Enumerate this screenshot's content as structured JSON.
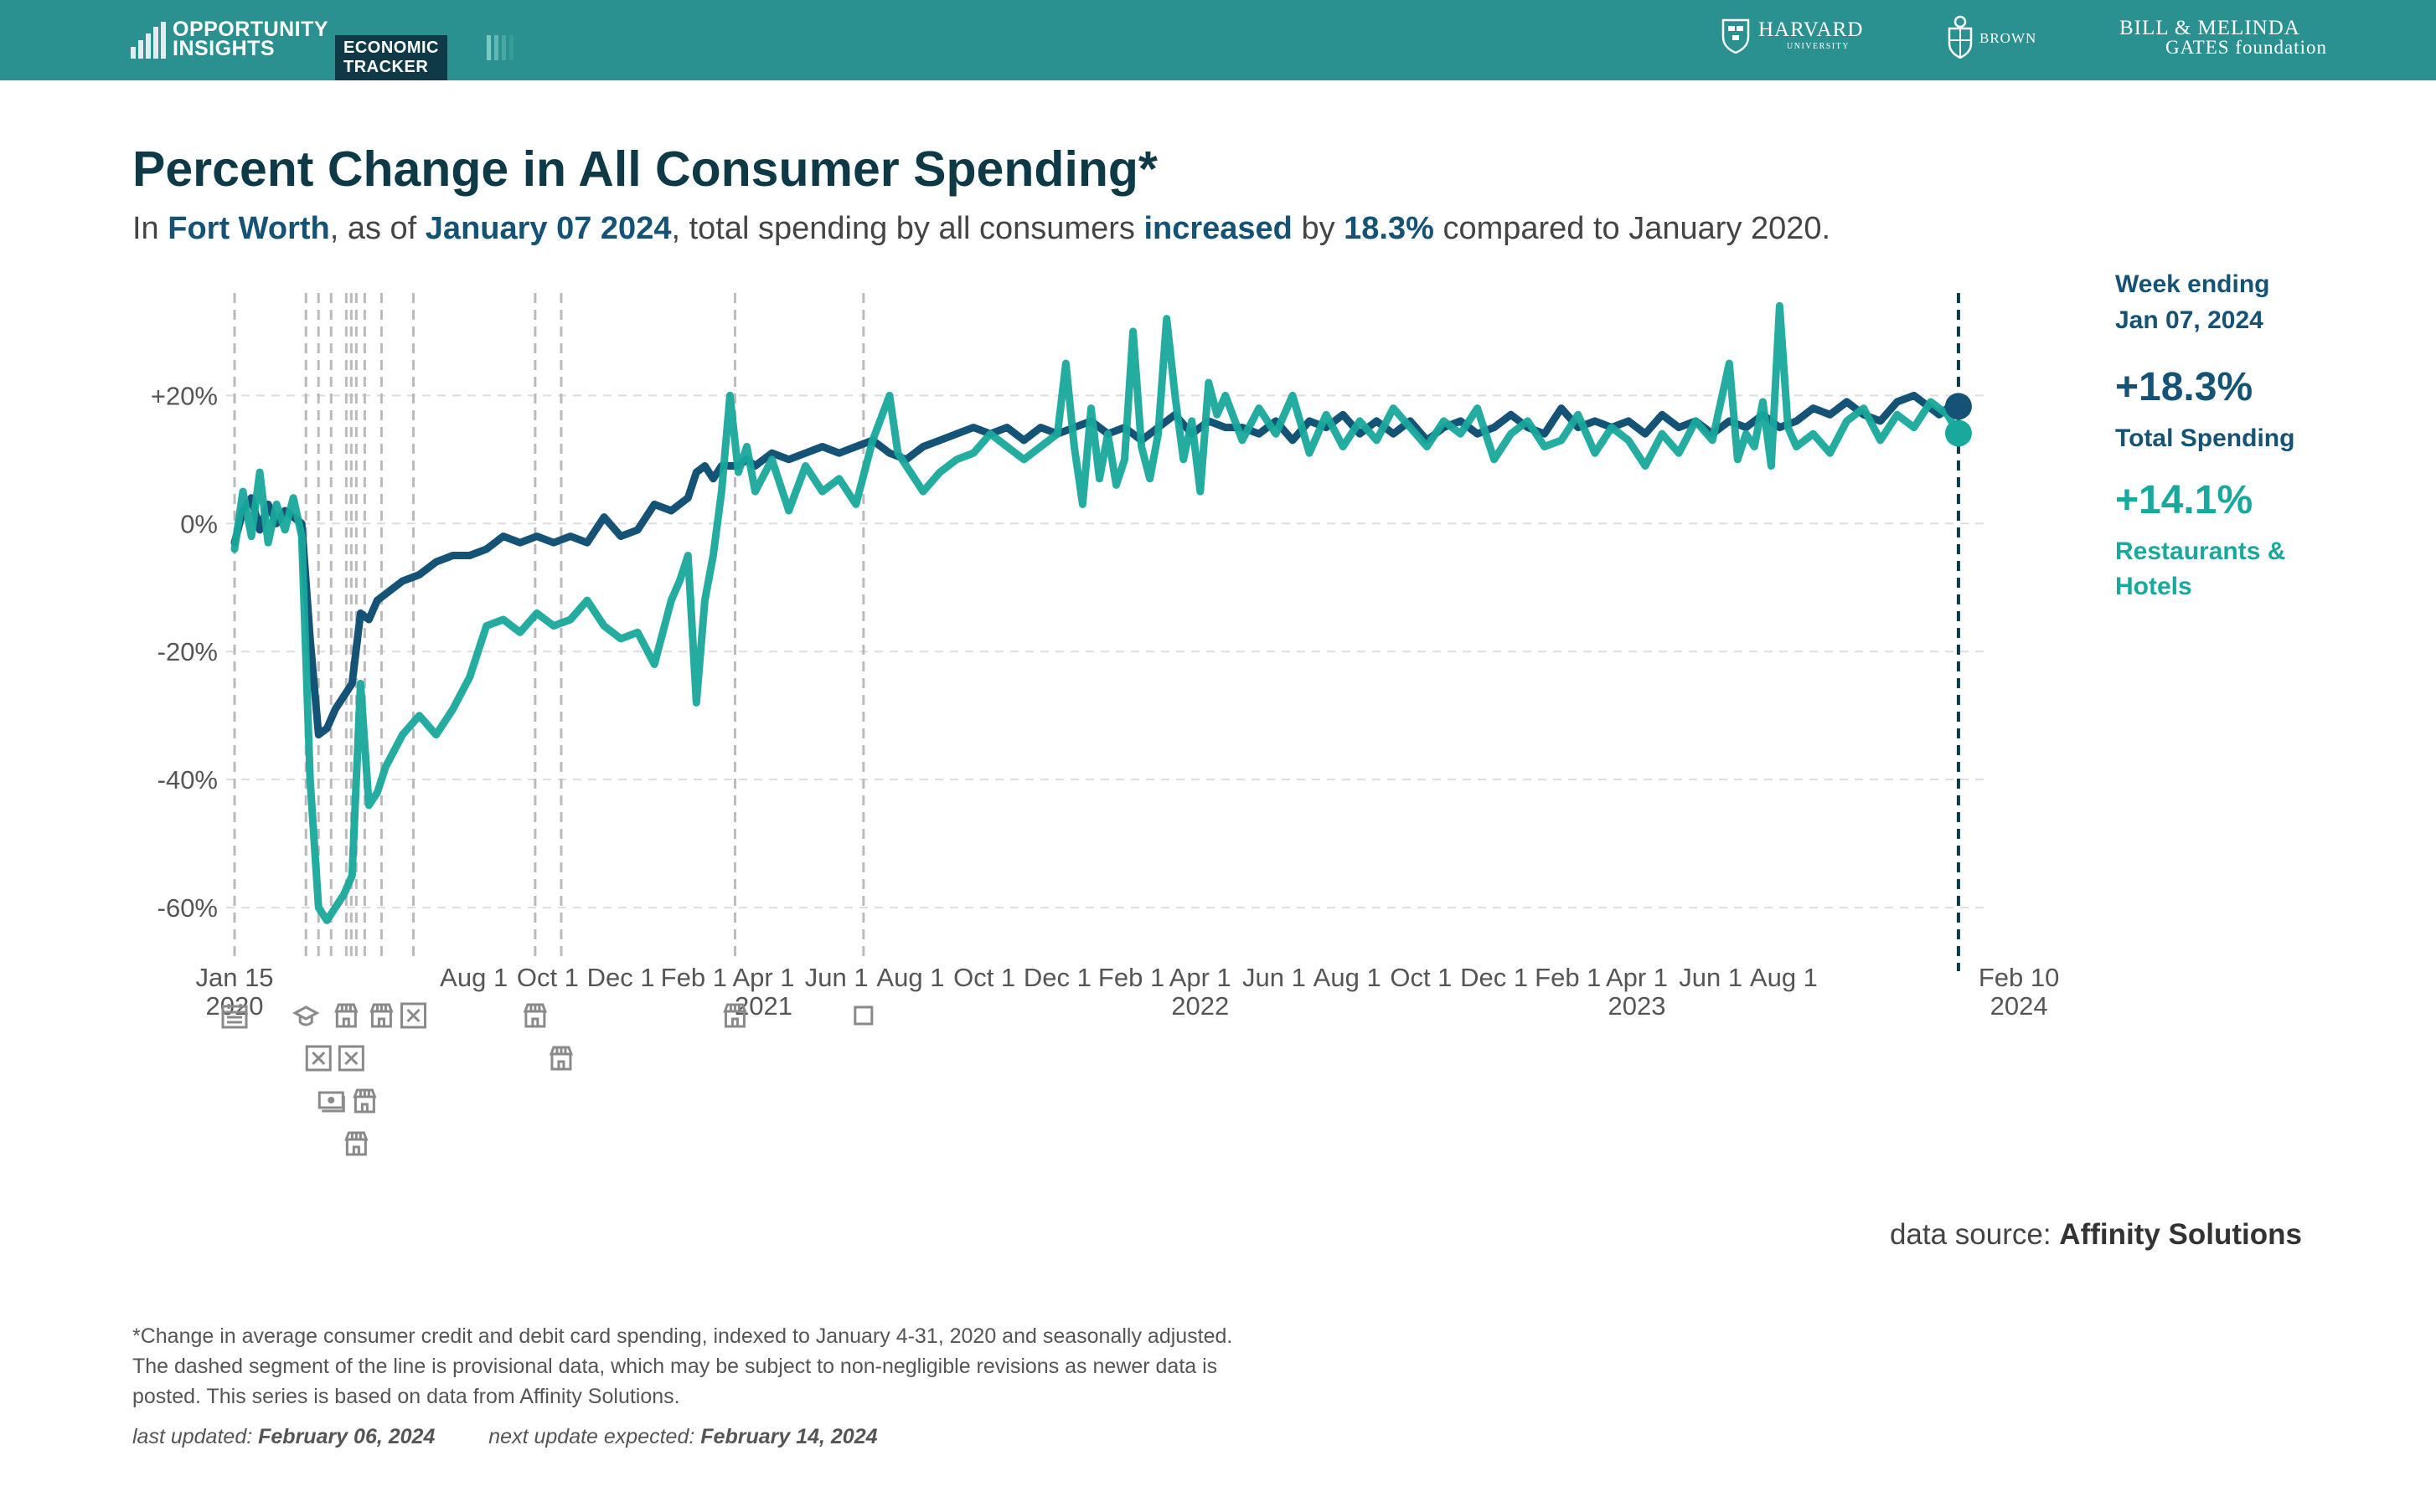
{
  "header": {
    "brand_line1": "OPPORTUNITY",
    "brand_line2": "INSIGHTS",
    "tracker_label": "ECONOMIC TRACKER",
    "partners": {
      "harvard": "HARVARD",
      "harvard_sub": "UNIVERSITY",
      "brown": "BROWN",
      "gates_line1": "BILL & MELINDA",
      "gates_line2": "GATES foundation"
    },
    "background_color": "#2a9090"
  },
  "title": "Percent Change in All Consumer Spending*",
  "subtitle": {
    "p1": "In ",
    "location": "Fort Worth",
    "p2": ", as of ",
    "date": "January 07 2024",
    "p3": ", total spending by all consumers ",
    "direction": "increased",
    "p4": " by ",
    "value": "18.3%",
    "p5": " compared to January 2020."
  },
  "side_panel": {
    "week_line1": "Week ending",
    "week_line2": "Jan 07, 2024",
    "total_value": "+18.3%",
    "total_label": "Total Spending",
    "rest_value": "+14.1%",
    "rest_label_line1": "Restaurants &",
    "rest_label_line2": "Hotels"
  },
  "source_prefix": "data source: ",
  "source_name": "Affinity Solutions",
  "footnote_lines": [
    "*Change in average consumer credit and debit card spending, indexed to January 4-31, 2020 and seasonally adjusted.",
    "The dashed segment of the line is provisional data, which may be subject to non-negligible revisions as newer data is",
    "posted. This series is based on data from Affinity Solutions."
  ],
  "last_updated_label": "last updated:",
  "last_updated": "February 06, 2024",
  "next_update_label": "next update expected:",
  "next_update": "February 14, 2024",
  "colors": {
    "total": "#145375",
    "restaurants": "#18a89c",
    "title": "#0d3a46",
    "event_line": "#bbbbbb",
    "grid": "#dddddd"
  },
  "chart_data": {
    "type": "line",
    "x_unit": "weeks since Jan 15 2020",
    "xlim": [
      -0.5,
      208.5
    ],
    "ylim": [
      -66,
      36
    ],
    "y_ticks": [
      -60,
      -40,
      -20,
      0,
      20
    ],
    "y_tick_labels": [
      "-60%",
      "-40%",
      "-20%",
      "0%",
      "+20%"
    ],
    "x_tick_labels": [
      {
        "x": 0,
        "l1": "Jan 15",
        "l2": "2020"
      },
      {
        "x": 28.5,
        "l1": "Aug 1",
        "l2": ""
      },
      {
        "x": 37.3,
        "l1": "Oct 1",
        "l2": ""
      },
      {
        "x": 46,
        "l1": "Dec 1",
        "l2": ""
      },
      {
        "x": 54.7,
        "l1": "Feb 1",
        "l2": ""
      },
      {
        "x": 63,
        "l1": "Apr 1",
        "l2": "2021"
      },
      {
        "x": 71.7,
        "l1": "Jun 1",
        "l2": ""
      },
      {
        "x": 80.5,
        "l1": "Aug 1",
        "l2": ""
      },
      {
        "x": 89.3,
        "l1": "Oct 1",
        "l2": ""
      },
      {
        "x": 98,
        "l1": "Dec 1",
        "l2": ""
      },
      {
        "x": 106.8,
        "l1": "Feb 1",
        "l2": ""
      },
      {
        "x": 115,
        "l1": "Apr 1",
        "l2": "2022"
      },
      {
        "x": 123.8,
        "l1": "Jun 1",
        "l2": ""
      },
      {
        "x": 132.5,
        "l1": "Aug 1",
        "l2": ""
      },
      {
        "x": 141.3,
        "l1": "Oct 1",
        "l2": ""
      },
      {
        "x": 150,
        "l1": "Dec 1",
        "l2": ""
      },
      {
        "x": 158.8,
        "l1": "Feb 1",
        "l2": ""
      },
      {
        "x": 167,
        "l1": "Apr 1",
        "l2": "2023"
      },
      {
        "x": 175.8,
        "l1": "Jun 1",
        "l2": ""
      },
      {
        "x": 184.5,
        "l1": "Aug 1",
        "l2": ""
      },
      {
        "x": 212.5,
        "l1": "Feb 10",
        "l2": "2024"
      }
    ],
    "event_lines": [
      {
        "x": 0,
        "icon": "calendar"
      },
      {
        "x": 8.5,
        "icon": "graduation-cap"
      },
      {
        "x": 10,
        "icon": "box-x"
      },
      {
        "x": 11.5,
        "icon": "cash"
      },
      {
        "x": 13.3,
        "icon": "store"
      },
      {
        "x": 13.9,
        "icon": "box-x"
      },
      {
        "x": 14.5,
        "icon": "store"
      },
      {
        "x": 15.5,
        "icon": "store"
      },
      {
        "x": 17.5,
        "icon": "store"
      },
      {
        "x": 21.3,
        "icon": "box-x"
      },
      {
        "x": 35.8,
        "icon": "store"
      },
      {
        "x": 38.9,
        "icon": "store"
      },
      {
        "x": 59.6,
        "icon": "store"
      },
      {
        "x": 74.9,
        "icon": "square"
      }
    ],
    "current_week_x": 205.3,
    "series": [
      {
        "name": "Total Spending",
        "color": "#145375",
        "last_value": 18.3,
        "points": [
          [
            0,
            -3
          ],
          [
            1,
            2
          ],
          [
            2,
            4
          ],
          [
            3,
            -1
          ],
          [
            4,
            3
          ],
          [
            5,
            0
          ],
          [
            6,
            2
          ],
          [
            7,
            1
          ],
          [
            8,
            0
          ],
          [
            9,
            -18
          ],
          [
            10,
            -33
          ],
          [
            11,
            -32
          ],
          [
            12,
            -29
          ],
          [
            13,
            -27
          ],
          [
            14,
            -25
          ],
          [
            15,
            -14
          ],
          [
            16,
            -15
          ],
          [
            17,
            -12
          ],
          [
            18,
            -11
          ],
          [
            20,
            -9
          ],
          [
            22,
            -8
          ],
          [
            24,
            -6
          ],
          [
            26,
            -5
          ],
          [
            28,
            -5
          ],
          [
            30,
            -4
          ],
          [
            32,
            -2
          ],
          [
            34,
            -3
          ],
          [
            36,
            -2
          ],
          [
            38,
            -3
          ],
          [
            40,
            -2
          ],
          [
            42,
            -3
          ],
          [
            44,
            1
          ],
          [
            46,
            -2
          ],
          [
            48,
            -1
          ],
          [
            50,
            3
          ],
          [
            52,
            2
          ],
          [
            54,
            4
          ],
          [
            55,
            8
          ],
          [
            56,
            9
          ],
          [
            57,
            7
          ],
          [
            58,
            9
          ],
          [
            60,
            9
          ],
          [
            61,
            10
          ],
          [
            62,
            9
          ],
          [
            64,
            11
          ],
          [
            66,
            10
          ],
          [
            68,
            11
          ],
          [
            70,
            12
          ],
          [
            72,
            11
          ],
          [
            74,
            12
          ],
          [
            76,
            13
          ],
          [
            78,
            11
          ],
          [
            80,
            10
          ],
          [
            82,
            12
          ],
          [
            84,
            13
          ],
          [
            86,
            14
          ],
          [
            88,
            15
          ],
          [
            90,
            14
          ],
          [
            92,
            15
          ],
          [
            94,
            13
          ],
          [
            96,
            15
          ],
          [
            98,
            14
          ],
          [
            100,
            15
          ],
          [
            102,
            16
          ],
          [
            104,
            14
          ],
          [
            106,
            15
          ],
          [
            108,
            13
          ],
          [
            110,
            15
          ],
          [
            112,
            17
          ],
          [
            114,
            14
          ],
          [
            116,
            16
          ],
          [
            118,
            15
          ],
          [
            120,
            15
          ],
          [
            122,
            14
          ],
          [
            124,
            16
          ],
          [
            126,
            13
          ],
          [
            128,
            16
          ],
          [
            130,
            15
          ],
          [
            132,
            17
          ],
          [
            134,
            14
          ],
          [
            136,
            16
          ],
          [
            138,
            14
          ],
          [
            140,
            16
          ],
          [
            142,
            13
          ],
          [
            144,
            15
          ],
          [
            146,
            16
          ],
          [
            148,
            14
          ],
          [
            150,
            15
          ],
          [
            152,
            17
          ],
          [
            154,
            15
          ],
          [
            156,
            14
          ],
          [
            158,
            18
          ],
          [
            160,
            15
          ],
          [
            162,
            16
          ],
          [
            164,
            15
          ],
          [
            166,
            16
          ],
          [
            168,
            14
          ],
          [
            170,
            17
          ],
          [
            172,
            15
          ],
          [
            174,
            16
          ],
          [
            176,
            14
          ],
          [
            178,
            16
          ],
          [
            180,
            15
          ],
          [
            182,
            17
          ],
          [
            184,
            15
          ],
          [
            186,
            16
          ],
          [
            188,
            18
          ],
          [
            190,
            17
          ],
          [
            192,
            19
          ],
          [
            194,
            17
          ],
          [
            196,
            16
          ],
          [
            198,
            19
          ],
          [
            200,
            20
          ],
          [
            202,
            18
          ],
          [
            203,
            17
          ],
          [
            204,
            18
          ],
          [
            205.3,
            18.3
          ]
        ]
      },
      {
        "name": "Restaurants & Hotels",
        "color": "#18a89c",
        "last_value": 14.1,
        "points": [
          [
            0,
            -4
          ],
          [
            1,
            5
          ],
          [
            2,
            -2
          ],
          [
            3,
            8
          ],
          [
            4,
            -3
          ],
          [
            5,
            3
          ],
          [
            6,
            -1
          ],
          [
            7,
            4
          ],
          [
            8,
            -2
          ],
          [
            9,
            -40
          ],
          [
            10,
            -60
          ],
          [
            11,
            -62
          ],
          [
            12,
            -60
          ],
          [
            13,
            -58
          ],
          [
            14,
            -55
          ],
          [
            15,
            -25
          ],
          [
            16,
            -44
          ],
          [
            17,
            -42
          ],
          [
            18,
            -38
          ],
          [
            20,
            -33
          ],
          [
            22,
            -30
          ],
          [
            24,
            -33
          ],
          [
            26,
            -29
          ],
          [
            28,
            -24
          ],
          [
            30,
            -16
          ],
          [
            32,
            -15
          ],
          [
            34,
            -17
          ],
          [
            36,
            -14
          ],
          [
            38,
            -16
          ],
          [
            40,
            -15
          ],
          [
            42,
            -12
          ],
          [
            44,
            -16
          ],
          [
            46,
            -18
          ],
          [
            48,
            -17
          ],
          [
            50,
            -22
          ],
          [
            52,
            -12
          ],
          [
            53,
            -9
          ],
          [
            54,
            -5
          ],
          [
            55,
            -28
          ],
          [
            56,
            -12
          ],
          [
            57,
            -5
          ],
          [
            58,
            5
          ],
          [
            59,
            20
          ],
          [
            60,
            8
          ],
          [
            61,
            12
          ],
          [
            62,
            5
          ],
          [
            64,
            10
          ],
          [
            66,
            2
          ],
          [
            68,
            9
          ],
          [
            70,
            5
          ],
          [
            72,
            7
          ],
          [
            74,
            3
          ],
          [
            76,
            13
          ],
          [
            78,
            20
          ],
          [
            79,
            11
          ],
          [
            80,
            9
          ],
          [
            82,
            5
          ],
          [
            84,
            8
          ],
          [
            86,
            10
          ],
          [
            88,
            11
          ],
          [
            90,
            14
          ],
          [
            92,
            12
          ],
          [
            94,
            10
          ],
          [
            96,
            12
          ],
          [
            98,
            14
          ],
          [
            99,
            25
          ],
          [
            100,
            12
          ],
          [
            101,
            3
          ],
          [
            102,
            18
          ],
          [
            103,
            7
          ],
          [
            104,
            14
          ],
          [
            105,
            6
          ],
          [
            106,
            10
          ],
          [
            107,
            30
          ],
          [
            108,
            12
          ],
          [
            109,
            7
          ],
          [
            110,
            14
          ],
          [
            111,
            32
          ],
          [
            112,
            20
          ],
          [
            113,
            10
          ],
          [
            114,
            16
          ],
          [
            115,
            5
          ],
          [
            116,
            22
          ],
          [
            117,
            17
          ],
          [
            118,
            20
          ],
          [
            120,
            13
          ],
          [
            122,
            18
          ],
          [
            124,
            14
          ],
          [
            126,
            20
          ],
          [
            128,
            11
          ],
          [
            130,
            17
          ],
          [
            132,
            12
          ],
          [
            134,
            16
          ],
          [
            136,
            13
          ],
          [
            138,
            18
          ],
          [
            140,
            15
          ],
          [
            142,
            12
          ],
          [
            144,
            16
          ],
          [
            146,
            14
          ],
          [
            148,
            18
          ],
          [
            150,
            10
          ],
          [
            152,
            14
          ],
          [
            154,
            16
          ],
          [
            156,
            12
          ],
          [
            158,
            13
          ],
          [
            160,
            17
          ],
          [
            162,
            11
          ],
          [
            164,
            15
          ],
          [
            166,
            13
          ],
          [
            168,
            9
          ],
          [
            170,
            14
          ],
          [
            172,
            11
          ],
          [
            174,
            16
          ],
          [
            176,
            13
          ],
          [
            178,
            25
          ],
          [
            179,
            10
          ],
          [
            180,
            14
          ],
          [
            181,
            12
          ],
          [
            182,
            19
          ],
          [
            183,
            9
          ],
          [
            184,
            34
          ],
          [
            185,
            15
          ],
          [
            186,
            12
          ],
          [
            188,
            14
          ],
          [
            190,
            11
          ],
          [
            192,
            16
          ],
          [
            194,
            18
          ],
          [
            196,
            13
          ],
          [
            198,
            17
          ],
          [
            200,
            15
          ],
          [
            202,
            19
          ],
          [
            204,
            17
          ],
          [
            205.3,
            14.1
          ]
        ]
      }
    ]
  }
}
